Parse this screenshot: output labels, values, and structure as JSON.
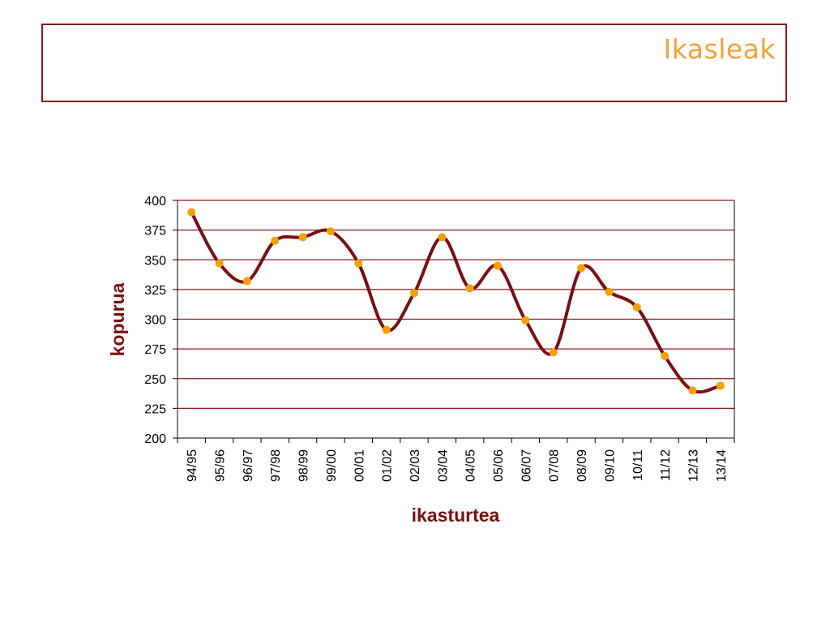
{
  "slide": {
    "title": "Ikasleak"
  },
  "colors": {
    "frame": "#8b1a1a",
    "title": "#f5a03a",
    "gridline": "#8b1a1a",
    "line": "#7a0f0f",
    "marker": "#f5a000",
    "axis_title": "#7a0f0f"
  },
  "chart_data": {
    "type": "line",
    "xlabel": "ikasturtea",
    "ylabel": "kopurua",
    "ylim": [
      200,
      400
    ],
    "yticks": [
      200,
      225,
      250,
      275,
      300,
      325,
      350,
      375,
      400
    ],
    "grid": true,
    "smooth": true,
    "categories": [
      "94/95",
      "95/96",
      "96/97",
      "97/98",
      "98/99",
      "99/00",
      "00/01",
      "01/02",
      "02/03",
      "03/04",
      "04/05",
      "05/06",
      "06/07",
      "07/08",
      "08/09",
      "09/10",
      "10/11",
      "11/12",
      "12/13",
      "13/14"
    ],
    "series": [
      {
        "values": [
          390,
          347,
          332,
          366,
          369,
          374,
          347,
          291,
          322,
          369,
          326,
          345,
          299,
          272,
          343,
          323,
          310,
          269,
          240,
          244
        ]
      }
    ]
  }
}
